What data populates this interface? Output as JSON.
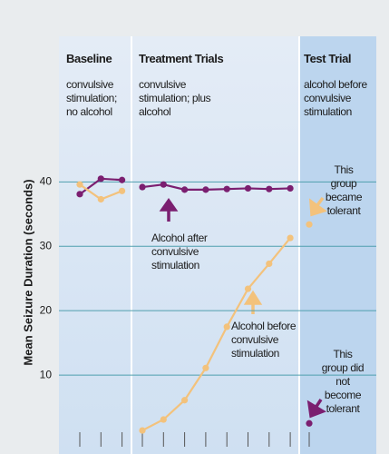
{
  "chart_data": {
    "type": "line",
    "ylabel": "Mean Seizure Duration (seconds)",
    "ylim": [
      0,
      44
    ],
    "yticks": [
      10,
      20,
      30,
      40
    ],
    "grid": true,
    "panels": [
      {
        "title": "Baseline",
        "subtitle": "convulsive stimulation; no alcohol",
        "categories": [
          null,
          null,
          null
        ]
      },
      {
        "title": "Treatment Trials",
        "subtitle": "convulsive stimulation; plus alcohol",
        "categories": [
          null,
          null,
          null,
          null,
          null,
          null,
          null,
          null
        ]
      },
      {
        "title": "Test Trial",
        "subtitle": "alcohol before convulsive stimulation",
        "categories": [
          null
        ]
      }
    ],
    "series": [
      {
        "name": "Alcohol after convulsive stimulation",
        "color": "#7b1f70",
        "values": [
          [
            38.1,
            40.5,
            40.3
          ],
          [
            39.2,
            39.6,
            38.8,
            38.8,
            38.9,
            39.0,
            38.9,
            39.0
          ],
          [
            2.5
          ]
        ]
      },
      {
        "name": "Alcohol before convulsive stimulation",
        "color": "#f3c27c",
        "values": [
          [
            39.6,
            37.3,
            38.6
          ],
          [
            1.4,
            3.1,
            6.1,
            11.1,
            17.5,
            23.4,
            27.3,
            31.3
          ],
          [
            33.4
          ]
        ]
      }
    ],
    "annotations": [
      "This group became tolerant",
      "This group did not become tolerant"
    ]
  }
}
